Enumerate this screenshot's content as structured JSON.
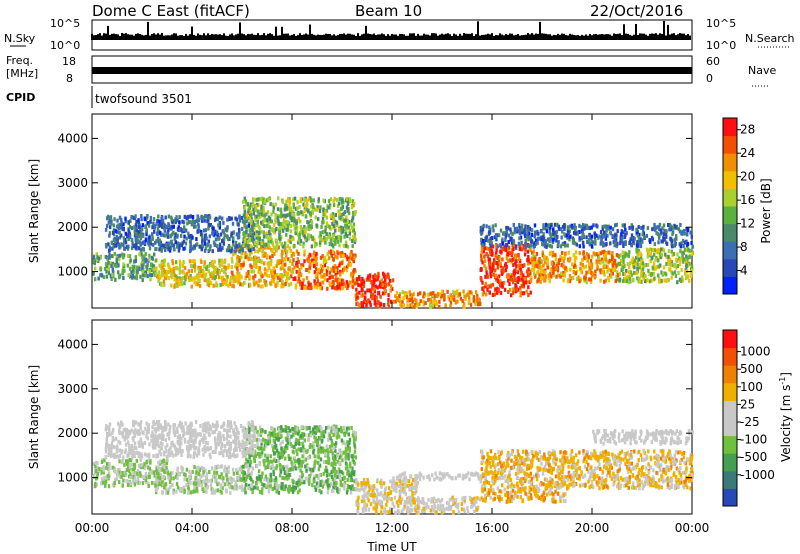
{
  "header": {
    "station": "Dome C East (fitACF)",
    "beam": "Beam 10",
    "date": "22/Oct/2016"
  },
  "noise_panel": {
    "left_label": "N.Sky",
    "left_ticks": [
      "10^5",
      "10^0"
    ],
    "right_label": "N.Search",
    "right_ticks": [
      "10^5",
      "10^0"
    ]
  },
  "freq_panel": {
    "left_label_1": "Freq.",
    "left_label_2": "[MHz]",
    "left_ticks": [
      "18",
      "8"
    ],
    "right_label": "Nave",
    "right_ticks": [
      "60",
      "0"
    ]
  },
  "cpid_panel": {
    "label": "CPID",
    "text": "twofsound 3501"
  },
  "colors": {
    "power": [
      "#0020ff",
      "#2848b8",
      "#3c6eb4",
      "#4a8a6a",
      "#5cb040",
      "#a8d030",
      "#f0c000",
      "#f09000",
      "#f05000",
      "#ff1010"
    ],
    "velocity": [
      "#ff1010",
      "#f05000",
      "#f08000",
      "#f0b000",
      "#c8c8c8",
      "#c8c8c8",
      "#70c040",
      "#44a050",
      "#3c7a7a",
      "#2848b8"
    ]
  },
  "chart_data": [
    {
      "type": "heatmap",
      "title": "Power",
      "ylabel": "Slant Range [km]",
      "xlabel": "",
      "x_ticks": [
        "00:00",
        "04:00",
        "08:00",
        "12:00",
        "16:00",
        "20:00",
        "00:00"
      ],
      "xlim_hours": [
        0,
        24
      ],
      "y_ticks": [
        "1000",
        "2000",
        "3000",
        "4000"
      ],
      "ylim_km": [
        180,
        4550
      ],
      "colorbar": {
        "label": "Power [dB]",
        "ticks": [
          "4",
          "8",
          "12",
          "16",
          "20",
          "24",
          "28"
        ],
        "range": [
          0,
          30
        ]
      },
      "regions": [
        {
          "t": [
            0.0,
            2.5
          ],
          "r": [
            850,
            1450
          ],
          "v": 12
        },
        {
          "t": [
            2.5,
            5.5
          ],
          "r": [
            700,
            1300
          ],
          "v": 19
        },
        {
          "t": [
            5.5,
            8.0
          ],
          "r": [
            700,
            1600
          ],
          "v": 21
        },
        {
          "t": [
            8.0,
            10.5
          ],
          "r": [
            650,
            1500
          ],
          "v": 24
        },
        {
          "t": [
            10.5,
            12.0
          ],
          "r": [
            250,
            1000
          ],
          "v": 28
        },
        {
          "t": [
            12.0,
            15.5
          ],
          "r": [
            250,
            600
          ],
          "v": 22
        },
        {
          "t": [
            15.5,
            17.5
          ],
          "r": [
            500,
            1650
          ],
          "v": 27
        },
        {
          "t": [
            17.5,
            21.0
          ],
          "r": [
            800,
            1500
          ],
          "v": 22
        },
        {
          "t": [
            21.0,
            24.0
          ],
          "r": [
            800,
            1550
          ],
          "v": 16
        },
        {
          "t": [
            0.5,
            6.5
          ],
          "r": [
            1500,
            2300
          ],
          "v": 7
        },
        {
          "t": [
            6.0,
            10.5
          ],
          "r": [
            1600,
            2700
          ],
          "v": 14
        },
        {
          "t": [
            15.5,
            24.0
          ],
          "r": [
            1600,
            2100
          ],
          "v": 7
        }
      ]
    },
    {
      "type": "heatmap",
      "title": "Velocity",
      "ylabel": "Slant Range [km]",
      "xlabel": "Time UT",
      "x_ticks": [
        "00:00",
        "04:00",
        "08:00",
        "12:00",
        "16:00",
        "20:00",
        "00:00"
      ],
      "xlim_hours": [
        0,
        24
      ],
      "y_ticks": [
        "1000",
        "2000",
        "3000",
        "4000"
      ],
      "ylim_km": [
        180,
        4550
      ],
      "colorbar": {
        "label": "Velocity [m s^-1]",
        "ticks": [
          "1000",
          "500",
          "100",
          "25",
          "-25",
          "-100",
          "-500",
          "-1000"
        ],
        "range": [
          -1000,
          1000
        ]
      },
      "regions": [
        {
          "t": [
            0.0,
            3.0
          ],
          "r": [
            850,
            1450
          ],
          "v": -200
        },
        {
          "t": [
            2.5,
            6.0
          ],
          "r": [
            700,
            1300
          ],
          "v": -150
        },
        {
          "t": [
            6.0,
            10.5
          ],
          "r": [
            700,
            2200
          ],
          "v": -300
        },
        {
          "t": [
            10.5,
            13.0
          ],
          "r": [
            250,
            1000
          ],
          "v": 150
        },
        {
          "t": [
            12.5,
            15.5
          ],
          "r": [
            250,
            600
          ],
          "v": 80
        },
        {
          "t": [
            15.5,
            19.0
          ],
          "r": [
            500,
            1650
          ],
          "v": 300
        },
        {
          "t": [
            19.0,
            24.0
          ],
          "r": [
            800,
            1650
          ],
          "v": 250
        },
        {
          "t": [
            0.5,
            6.5
          ],
          "r": [
            1500,
            2300
          ],
          "v": 0
        },
        {
          "t": [
            12.0,
            15.5
          ],
          "r": [
            1000,
            1150
          ],
          "v": 0
        },
        {
          "t": [
            20.0,
            24.0
          ],
          "r": [
            1800,
            2100
          ],
          "v": 0
        }
      ]
    }
  ]
}
